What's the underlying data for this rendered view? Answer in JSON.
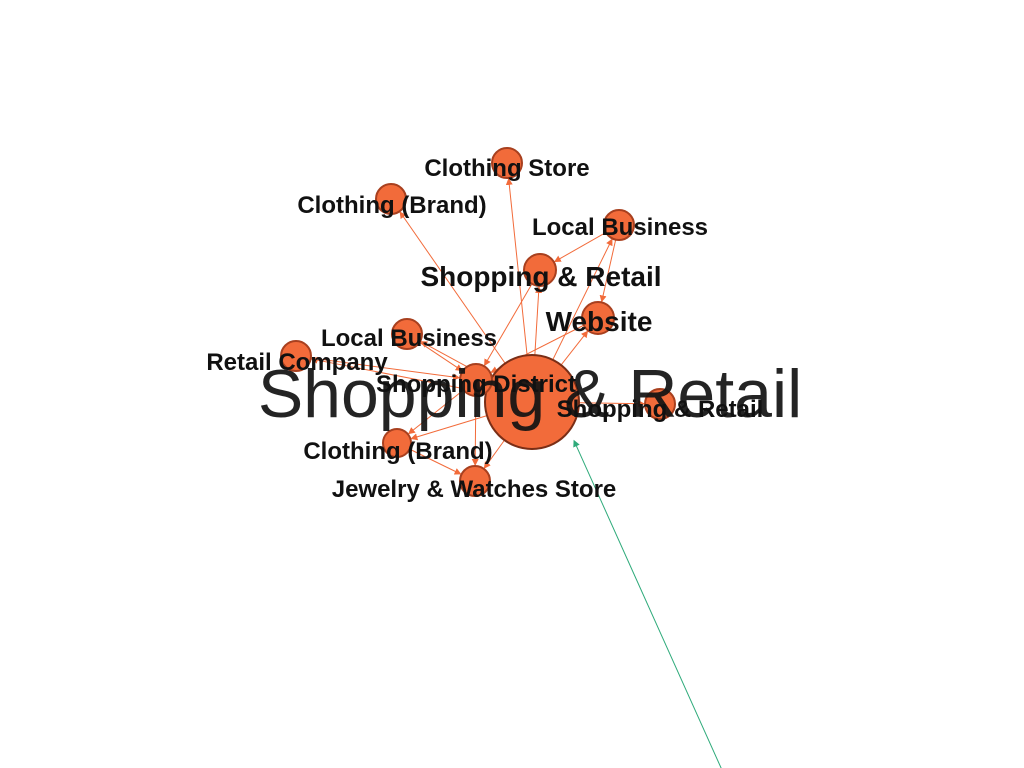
{
  "colors": {
    "node_fill": "#f26b3a",
    "node_stroke": "#a8401f",
    "hub_stroke": "#7a2e16",
    "edge": "#f26b3a",
    "external_edge": "#2eaa7a",
    "label": "#111111"
  },
  "nodes": [
    {
      "id": "hub",
      "label": "Shopping & Retail"
    },
    {
      "id": "clothing-store",
      "label": "Clothing Store"
    },
    {
      "id": "clothing-brand-1",
      "label": "Clothing (Brand)"
    },
    {
      "id": "local-business-1",
      "label": "Local Business"
    },
    {
      "id": "shopping-retail-2",
      "label": "Shopping & Retail"
    },
    {
      "id": "website",
      "label": "Website"
    },
    {
      "id": "local-business-2",
      "label": "Local Business"
    },
    {
      "id": "retail-company",
      "label": "Retail Company"
    },
    {
      "id": "shopping-district",
      "label": "Shopping District"
    },
    {
      "id": "shopping-retail-3",
      "label": "Shopping & Retail"
    },
    {
      "id": "clothing-brand-2",
      "label": "Clothing (Brand)"
    },
    {
      "id": "jewelry-store",
      "label": "Jewelry & Watches Store"
    }
  ],
  "edges": [
    {
      "from": "hub",
      "to": "clothing-store"
    },
    {
      "from": "hub",
      "to": "clothing-brand-1"
    },
    {
      "from": "hub",
      "to": "local-business-1"
    },
    {
      "from": "hub",
      "to": "shopping-retail-2"
    },
    {
      "from": "hub",
      "to": "website"
    },
    {
      "from": "hub",
      "to": "local-business-2"
    },
    {
      "from": "hub",
      "to": "retail-company"
    },
    {
      "from": "hub",
      "to": "shopping-district"
    },
    {
      "from": "hub",
      "to": "shopping-retail-3"
    },
    {
      "from": "hub",
      "to": "clothing-brand-2"
    },
    {
      "from": "hub",
      "to": "jewelry-store"
    },
    {
      "from": "local-business-1",
      "to": "shopping-retail-2"
    },
    {
      "from": "local-business-1",
      "to": "website"
    },
    {
      "from": "shopping-retail-2",
      "to": "shopping-district"
    },
    {
      "from": "website",
      "to": "shopping-district"
    },
    {
      "from": "local-business-2",
      "to": "shopping-district"
    },
    {
      "from": "retail-company",
      "to": "shopping-district"
    },
    {
      "from": "shopping-district",
      "to": "clothing-brand-2"
    },
    {
      "from": "shopping-district",
      "to": "jewelry-store"
    },
    {
      "from": "clothing-brand-2",
      "to": "jewelry-store"
    }
  ]
}
